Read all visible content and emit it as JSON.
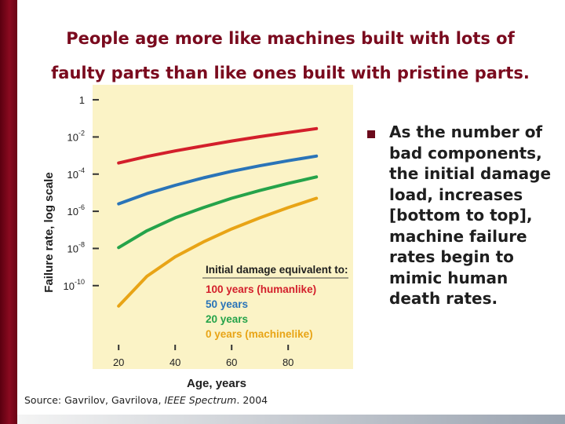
{
  "slide": {
    "title_line1": "People age more like machines built with lots of",
    "title_line2": "faulty parts than like ones built with pristine parts.",
    "bullet_text": "As the number of bad components, the initial damage load, increases [bottom to top], machine failure rates begin to mimic human death rates.",
    "source_prefix": "Source: Gavrilov, Gavrilova,",
    "source_journal": "IEEE Spectrum",
    "source_suffix": ". 2004"
  },
  "colors": {
    "title": "#7a0a1e",
    "chart_background": "#fbf3c6",
    "series": [
      "#d31f2b",
      "#2a74b8",
      "#25a34a",
      "#e8a416"
    ]
  },
  "chart_data": {
    "type": "line",
    "xlabel": "Age, years",
    "ylabel": "Failure rate, log scale",
    "y_scale": "log",
    "xlim": [
      13,
      98
    ],
    "x_ticks": [
      20,
      40,
      60,
      80
    ],
    "x_tick_labels": [
      "20",
      "40",
      "60",
      "80"
    ],
    "y_ticks_log10": [
      0,
      -2,
      -4,
      -6,
      -8,
      -10
    ],
    "y_tick_labels": [
      {
        "base": "1",
        "exp": ""
      },
      {
        "base": "10",
        "exp": "-2"
      },
      {
        "base": "10",
        "exp": "-4"
      },
      {
        "base": "10",
        "exp": "-6"
      },
      {
        "base": "10",
        "exp": "-8"
      },
      {
        "base": "10",
        "exp": "-10"
      }
    ],
    "ylim_log10": [
      -11.7,
      0.3
    ],
    "legend": {
      "title": "Initial damage equivalent to:",
      "position": "lower-right"
    },
    "series": [
      {
        "name": "100 years (humanlike)",
        "x": [
          20,
          30,
          40,
          50,
          60,
          70,
          80,
          90
        ],
        "y_log10": [
          -3.4,
          -3.05,
          -2.75,
          -2.48,
          -2.22,
          -1.98,
          -1.76,
          -1.55
        ]
      },
      {
        "name": "50 years",
        "x": [
          20,
          30,
          40,
          50,
          60,
          70,
          80,
          90
        ],
        "y_log10": [
          -5.6,
          -5.05,
          -4.6,
          -4.2,
          -3.85,
          -3.55,
          -3.28,
          -3.03
        ]
      },
      {
        "name": "20 years",
        "x": [
          20,
          30,
          40,
          50,
          60,
          70,
          80,
          90
        ],
        "y_log10": [
          -7.95,
          -7.05,
          -6.35,
          -5.8,
          -5.3,
          -4.88,
          -4.5,
          -4.15
        ]
      },
      {
        "name": "0 years (machinelike)",
        "x": [
          20,
          30,
          40,
          50,
          60,
          70,
          80,
          90
        ],
        "y_log10": [
          -11.1,
          -9.5,
          -8.45,
          -7.65,
          -6.95,
          -6.35,
          -5.8,
          -5.3
        ]
      }
    ]
  }
}
